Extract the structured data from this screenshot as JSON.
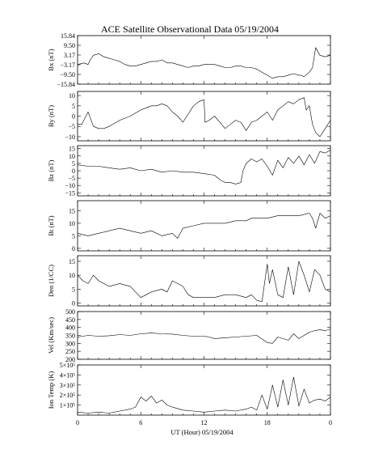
{
  "chart_title": "ACE Satellite Observational Data   05/19/2004",
  "xlabel": "UT (Hour)   05/19/2004",
  "x_tick_labels": [
    "0",
    "6",
    "12",
    "18",
    "0"
  ],
  "chart_data": [
    {
      "type": "line",
      "ylabel": "Bx (nT)",
      "ylim": [
        -15.84,
        15.84
      ],
      "y_tick_values": [
        15.84,
        9.5,
        3.17,
        -3.17,
        -9.5,
        -15.84
      ],
      "y_tick_labels": [
        "15.84",
        "9.50",
        "3.17",
        "−3.17",
        "−9.50",
        "−15.84"
      ],
      "xlim": [
        0,
        24
      ],
      "x": [
        0,
        0.6,
        1.0,
        1.2,
        1.5,
        2,
        2.5,
        3,
        3.5,
        4,
        4.5,
        5,
        5.5,
        6,
        6.5,
        7,
        7.5,
        8,
        8.5,
        9,
        9.5,
        10,
        10.5,
        11,
        11.5,
        12,
        12.5,
        13,
        13.5,
        14,
        14.5,
        15,
        15.5,
        16,
        16.5,
        17,
        17.5,
        18,
        18.5,
        19,
        19.5,
        20,
        20.5,
        21,
        21.2,
        21.5,
        22,
        22.3,
        22.6,
        23,
        23.5,
        24
      ],
      "values": [
        -3,
        -2,
        -3,
        0,
        3,
        4,
        2,
        1,
        0,
        -1,
        -3,
        -4,
        -4,
        -3,
        -2,
        -1,
        -1,
        0,
        -2,
        -2,
        -3,
        -4,
        -5,
        -4,
        -4,
        -3,
        -3,
        -3,
        -4,
        -5,
        -5,
        -4,
        -4,
        -5,
        -5,
        -6,
        -8,
        -10,
        -12,
        -11,
        -11,
        -10,
        -9,
        -10,
        -10,
        -11,
        -8,
        -5,
        8,
        3,
        2,
        3
      ]
    },
    {
      "type": "line",
      "ylabel": "By (nT)",
      "ylim": [
        -12,
        12
      ],
      "y_tick_values": [
        10,
        5,
        0,
        -5,
        -10
      ],
      "y_tick_labels": [
        "10",
        "5",
        "0",
        "−5",
        "−10"
      ],
      "xlim": [
        0,
        24
      ],
      "x": [
        0,
        0.4,
        1.0,
        1.5,
        2,
        2.5,
        3,
        4,
        5,
        6,
        6.5,
        7,
        7.5,
        8,
        8.5,
        9,
        9.5,
        10,
        10.5,
        11,
        11.5,
        12,
        12.1,
        12.5,
        13,
        13.5,
        14,
        14.5,
        15,
        15.5,
        16,
        16.5,
        17,
        17.5,
        18,
        18.5,
        19,
        19.5,
        20,
        20.5,
        21,
        21.5,
        21.7,
        22,
        22.3,
        22.6,
        23,
        23.5,
        24
      ],
      "values": [
        -4,
        -4,
        2,
        -5,
        -6,
        -6,
        -5,
        -2,
        0,
        3,
        4,
        5,
        5,
        6,
        5,
        2,
        0,
        -3,
        1,
        5,
        7,
        8,
        -3,
        -2,
        0,
        -3,
        -6,
        -4,
        -2,
        -3,
        -7,
        -3,
        -2,
        0,
        2,
        -2,
        3,
        5,
        7,
        6,
        8,
        9,
        3,
        5,
        -4,
        -8,
        -10,
        -6,
        -2
      ]
    },
    {
      "type": "line",
      "ylabel": "Bz (nT)",
      "ylim": [
        -17,
        17
      ],
      "y_tick_values": [
        15,
        10,
        5,
        0,
        -5,
        -10,
        -15
      ],
      "y_tick_labels": [
        "15",
        "10",
        "5",
        "0",
        "−5",
        "−10",
        "−15"
      ],
      "xlim": [
        0,
        24
      ],
      "x": [
        0,
        1,
        2,
        3,
        4,
        5,
        6,
        7,
        8,
        9,
        10,
        11,
        12,
        13,
        13.5,
        14,
        14.5,
        15,
        15.5,
        15.7,
        16,
        16.5,
        17,
        17.5,
        18,
        18.5,
        19,
        19.5,
        20,
        20.5,
        21,
        21.5,
        22,
        22.5,
        23,
        23.5,
        24
      ],
      "values": [
        4,
        3,
        3,
        2,
        1,
        2,
        0,
        1,
        -1,
        0,
        -1,
        -1,
        -2,
        -3,
        -6,
        -8,
        -8,
        -9,
        -8,
        0,
        5,
        8,
        6,
        8,
        3,
        -3,
        7,
        2,
        9,
        5,
        10,
        4,
        11,
        5,
        13,
        12,
        14
      ]
    },
    {
      "type": "line",
      "ylabel": "Bt (nT)",
      "ylim": [
        -1,
        19
      ],
      "y_tick_values": [
        15,
        10,
        5,
        0
      ],
      "y_tick_labels": [
        "15",
        "10",
        "5",
        "0"
      ],
      "xlim": [
        0,
        24
      ],
      "x": [
        0,
        0.5,
        1,
        2,
        3,
        4,
        5,
        6,
        7,
        7.5,
        8,
        9,
        9.5,
        10,
        11,
        12,
        13,
        14,
        15,
        16,
        16.5,
        17,
        18,
        19,
        20,
        21,
        22,
        22.3,
        22.6,
        23,
        23.5,
        24
      ],
      "values": [
        6,
        5.5,
        5,
        6,
        7,
        8,
        7,
        6,
        7,
        6,
        5,
        6,
        4,
        8,
        9,
        10,
        10,
        10,
        11,
        11,
        12,
        12,
        12,
        13,
        13,
        13,
        14,
        12,
        8,
        14,
        12,
        13
      ]
    },
    {
      "type": "line",
      "ylabel": "Den (1/CC)",
      "ylim": [
        -1,
        17
      ],
      "y_tick_values": [
        15,
        10,
        5,
        0
      ],
      "y_tick_labels": [
        "15",
        "10",
        "5",
        "0"
      ],
      "xlim": [
        0,
        24
      ],
      "x": [
        0,
        0.5,
        1,
        1.5,
        2,
        3,
        4,
        5,
        5.5,
        6,
        7,
        8,
        8.5,
        9,
        10,
        10.5,
        11,
        12,
        13,
        14,
        15,
        16,
        16.5,
        17,
        17.5,
        18,
        18.2,
        18.5,
        19,
        19.5,
        20,
        20.5,
        21,
        21.5,
        22,
        22.5,
        23,
        23.5,
        24
      ],
      "values": [
        10,
        8,
        7,
        10,
        8,
        6,
        7,
        6,
        4,
        2,
        4,
        5,
        4,
        8,
        6,
        3,
        2,
        2,
        2,
        3,
        3,
        2,
        3,
        1,
        0.5,
        14,
        7,
        12,
        3,
        2,
        13,
        3,
        15,
        10,
        4,
        12,
        10,
        5,
        4
      ]
    },
    {
      "type": "line",
      "ylabel": "Vel (Km/sec)",
      "ylim": [
        200,
        500
      ],
      "y_tick_values": [
        500,
        450,
        400,
        350,
        300,
        250,
        200
      ],
      "y_tick_labels": [
        "500",
        "450",
        "400",
        "350",
        "300",
        "250",
        "200"
      ],
      "xlim": [
        0,
        24
      ],
      "x": [
        0,
        1,
        2,
        3,
        4,
        5,
        6,
        7,
        8,
        9,
        10,
        11,
        12,
        12.5,
        13,
        14,
        15,
        16,
        17,
        18,
        18.5,
        19,
        20,
        20.5,
        21,
        22,
        22.5,
        23,
        23.5,
        24
      ],
      "values": [
        340,
        350,
        345,
        348,
        355,
        350,
        360,
        365,
        360,
        358,
        350,
        345,
        345,
        340,
        330,
        335,
        340,
        345,
        350,
        305,
        300,
        340,
        320,
        360,
        330,
        370,
        380,
        385,
        380,
        390
      ]
    },
    {
      "type": "line",
      "ylabel": "Ion Temp (K)",
      "ylim": [
        0,
        500000
      ],
      "y_tick_values": [
        500000,
        400000,
        300000,
        200000,
        100000
      ],
      "y_tick_labels": [
        "5×10⁵",
        "4×10⁵",
        "3×10⁵",
        "2×10⁵",
        "1×10⁵"
      ],
      "xlim": [
        0,
        24
      ],
      "x": [
        0,
        1,
        2,
        3,
        4,
        5,
        5.5,
        6,
        6.5,
        7,
        7.5,
        8,
        8.5,
        9,
        10,
        11,
        12,
        13,
        14,
        15,
        16,
        16.5,
        17,
        17.5,
        18,
        18.5,
        19,
        19.5,
        20,
        20.5,
        21,
        21.5,
        22,
        22.5,
        23,
        23.5,
        24
      ],
      "values": [
        30000,
        20000,
        30000,
        20000,
        40000,
        60000,
        80000,
        180000,
        140000,
        190000,
        120000,
        150000,
        100000,
        80000,
        50000,
        40000,
        30000,
        40000,
        50000,
        40000,
        60000,
        80000,
        50000,
        200000,
        60000,
        300000,
        80000,
        350000,
        100000,
        380000,
        90000,
        260000,
        120000,
        150000,
        160000,
        140000,
        180000
      ]
    }
  ]
}
